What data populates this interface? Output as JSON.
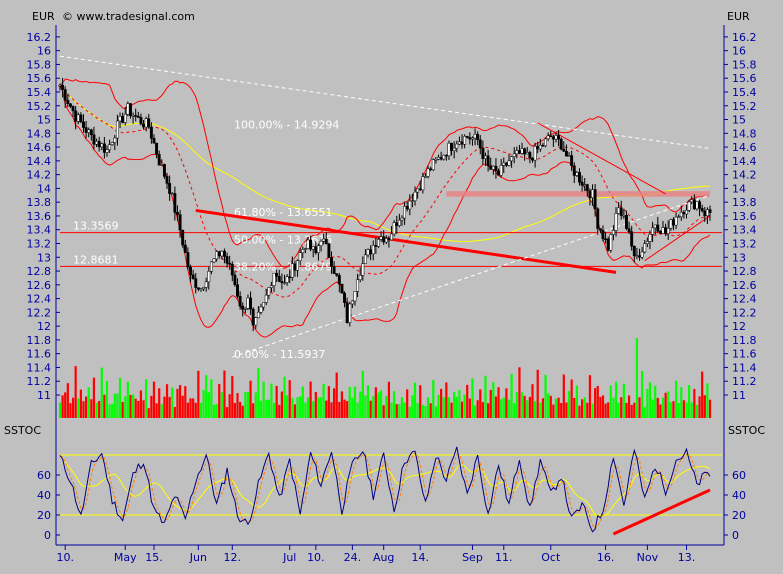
{
  "header": {
    "left_currency": "EUR",
    "right_currency": "EUR",
    "copyright": "© www.tradesignal.com",
    "indicator_left": "SSTOC",
    "indicator_right": "SSTOC"
  },
  "colors": {
    "background": "#c0c0c0",
    "axis_text": "#0000a0",
    "candle_up": "#ffffff",
    "candle_down": "#000000",
    "bollinger": "#ff0000",
    "moving_average": "#ffff00",
    "trend_line": "#ff0000",
    "fib_line": "#ffffff",
    "volume_up": "#00ff00",
    "volume_down": "#ff0000",
    "stoch_fast": "#000080",
    "stoch_slow": "#ff8000",
    "stoch_smooth": "#ffff00"
  },
  "chart_data": [
    {
      "type": "candlestick",
      "title": "",
      "ylabel": "EUR",
      "ylim": [
        11.0,
        16.3
      ],
      "y_ticks": [
        11,
        11.2,
        11.4,
        11.6,
        11.8,
        12,
        12.2,
        12.4,
        12.6,
        12.8,
        13,
        13.2,
        13.4,
        13.6,
        13.8,
        14,
        14.2,
        14.4,
        14.6,
        14.8,
        15,
        15.2,
        15.4,
        15.6,
        15.8,
        16,
        16.2
      ],
      "x_ticks": [
        "10.",
        "May",
        "15.",
        "Jun",
        "12.",
        "Jul",
        "10.",
        "24.",
        "Aug",
        "14.",
        "Sep",
        "11.",
        "Oct",
        "16.",
        "Nov",
        "13."
      ],
      "x_tick_index": [
        2,
        25,
        36,
        53,
        66,
        88,
        98,
        112,
        124,
        138,
        158,
        170,
        188,
        209,
        225,
        240
      ],
      "close_path": [
        [
          0,
          15.5
        ],
        [
          6,
          15.05
        ],
        [
          12,
          14.75
        ],
        [
          18,
          14.55
        ],
        [
          22,
          14.9
        ],
        [
          26,
          15.15
        ],
        [
          30,
          15.0
        ],
        [
          34,
          14.9
        ],
        [
          38,
          14.4
        ],
        [
          42,
          14.0
        ],
        [
          46,
          13.4
        ],
        [
          50,
          12.7
        ],
        [
          54,
          12.55
        ],
        [
          58,
          12.9
        ],
        [
          62,
          13.1
        ],
        [
          66,
          12.75
        ],
        [
          70,
          12.2
        ],
        [
          72,
          12.45
        ],
        [
          74,
          11.95
        ],
        [
          78,
          12.3
        ],
        [
          82,
          12.8
        ],
        [
          86,
          12.6
        ],
        [
          90,
          12.9
        ],
        [
          94,
          13.2
        ],
        [
          98,
          13.05
        ],
        [
          100,
          13.3
        ],
        [
          104,
          12.95
        ],
        [
          108,
          12.45
        ],
        [
          110,
          12.1
        ],
        [
          114,
          12.75
        ],
        [
          118,
          13.05
        ],
        [
          122,
          13.3
        ],
        [
          126,
          13.3
        ],
        [
          130,
          13.6
        ],
        [
          136,
          13.95
        ],
        [
          142,
          14.3
        ],
        [
          148,
          14.55
        ],
        [
          152,
          14.7
        ],
        [
          156,
          14.75
        ],
        [
          160,
          14.7
        ],
        [
          164,
          14.3
        ],
        [
          168,
          14.2
        ],
        [
          172,
          14.4
        ],
        [
          176,
          14.5
        ],
        [
          180,
          14.45
        ],
        [
          184,
          14.6
        ],
        [
          188,
          14.75
        ],
        [
          192,
          14.65
        ],
        [
          196,
          14.3
        ],
        [
          200,
          14.1
        ],
        [
          204,
          13.9
        ],
        [
          206,
          13.5
        ],
        [
          210,
          13.15
        ],
        [
          214,
          13.7
        ],
        [
          218,
          13.4
        ],
        [
          220,
          12.95
        ],
        [
          224,
          13.2
        ],
        [
          228,
          13.5
        ],
        [
          232,
          13.35
        ],
        [
          236,
          13.6
        ],
        [
          240,
          13.75
        ],
        [
          244,
          13.8
        ],
        [
          247,
          13.65
        ]
      ],
      "price_lines": [
        {
          "label": "13.3569",
          "value": 13.3569
        },
        {
          "label": "12.8681",
          "value": 12.8681
        }
      ],
      "fibonacci": [
        {
          "label": "100.00% - 14.9294",
          "value": 14.9294
        },
        {
          "label": "61.80% - 13.6551",
          "value": 13.6551
        },
        {
          "label": "50.00% - 13.2615",
          "value": 13.2615
        },
        {
          "label": "38.20% - 12.8679",
          "value": 12.8679
        },
        {
          "label": "0.00% - 11.5937",
          "value": 11.5937
        }
      ],
      "trend_lines": [
        {
          "from": [
            52,
            13.68
          ],
          "to": [
            213,
            12.78
          ],
          "width": 3
        },
        {
          "from": [
            0,
            15.92
          ],
          "to": [
            249,
            14.58
          ],
          "dashed": true,
          "color": "white"
        },
        {
          "from": [
            66,
            11.55
          ],
          "to": [
            249,
            13.9
          ],
          "dashed": true,
          "color": "white"
        },
        {
          "from": [
            183,
            14.95
          ],
          "to": [
            232,
            13.92
          ]
        },
        {
          "from": [
            224,
            12.95
          ],
          "to": [
            249,
            13.6
          ]
        }
      ],
      "resistance_band": {
        "from_index": 148,
        "to_index": 249,
        "low": 13.88,
        "high": 13.96
      }
    },
    {
      "type": "bar",
      "title": "",
      "series_name": "Volume",
      "ylim": [
        0,
        1
      ],
      "values_pattern": [
        0.25,
        0.4,
        0.3,
        0.55,
        0.2,
        0.35,
        0.6,
        0.3,
        0.45,
        0.25
      ],
      "spike": {
        "index": 221,
        "value": 1.0
      }
    },
    {
      "type": "line",
      "title": "",
      "ylabel": "SSTOC",
      "ylim": [
        -5,
        95
      ],
      "y_ticks": [
        0,
        20,
        40,
        60
      ],
      "levels": [
        20,
        80
      ],
      "stoch_path": [
        [
          0,
          78
        ],
        [
          4,
          55
        ],
        [
          8,
          18
        ],
        [
          12,
          70
        ],
        [
          16,
          82
        ],
        [
          20,
          35
        ],
        [
          24,
          15
        ],
        [
          28,
          60
        ],
        [
          32,
          75
        ],
        [
          36,
          25
        ],
        [
          40,
          10
        ],
        [
          44,
          40
        ],
        [
          48,
          15
        ],
        [
          52,
          55
        ],
        [
          56,
          80
        ],
        [
          60,
          30
        ],
        [
          64,
          65
        ],
        [
          68,
          20
        ],
        [
          72,
          10
        ],
        [
          76,
          50
        ],
        [
          80,
          82
        ],
        [
          84,
          35
        ],
        [
          88,
          75
        ],
        [
          92,
          20
        ],
        [
          96,
          82
        ],
        [
          100,
          50
        ],
        [
          104,
          85
        ],
        [
          108,
          25
        ],
        [
          112,
          70
        ],
        [
          116,
          85
        ],
        [
          120,
          40
        ],
        [
          124,
          80
        ],
        [
          128,
          25
        ],
        [
          132,
          75
        ],
        [
          136,
          82
        ],
        [
          140,
          30
        ],
        [
          144,
          80
        ],
        [
          148,
          55
        ],
        [
          152,
          85
        ],
        [
          156,
          40
        ],
        [
          160,
          80
        ],
        [
          164,
          20
        ],
        [
          168,
          70
        ],
        [
          172,
          30
        ],
        [
          176,
          78
        ],
        [
          180,
          25
        ],
        [
          184,
          75
        ],
        [
          188,
          40
        ],
        [
          192,
          60
        ],
        [
          196,
          15
        ],
        [
          200,
          30
        ],
        [
          204,
          5
        ],
        [
          208,
          25
        ],
        [
          212,
          80
        ],
        [
          216,
          30
        ],
        [
          220,
          85
        ],
        [
          224,
          35
        ],
        [
          228,
          70
        ],
        [
          232,
          45
        ],
        [
          236,
          75
        ],
        [
          240,
          82
        ],
        [
          244,
          50
        ],
        [
          247,
          60
        ]
      ],
      "rising_line": {
        "from": [
          212,
          1
        ],
        "to": [
          249,
          45
        ]
      }
    }
  ]
}
